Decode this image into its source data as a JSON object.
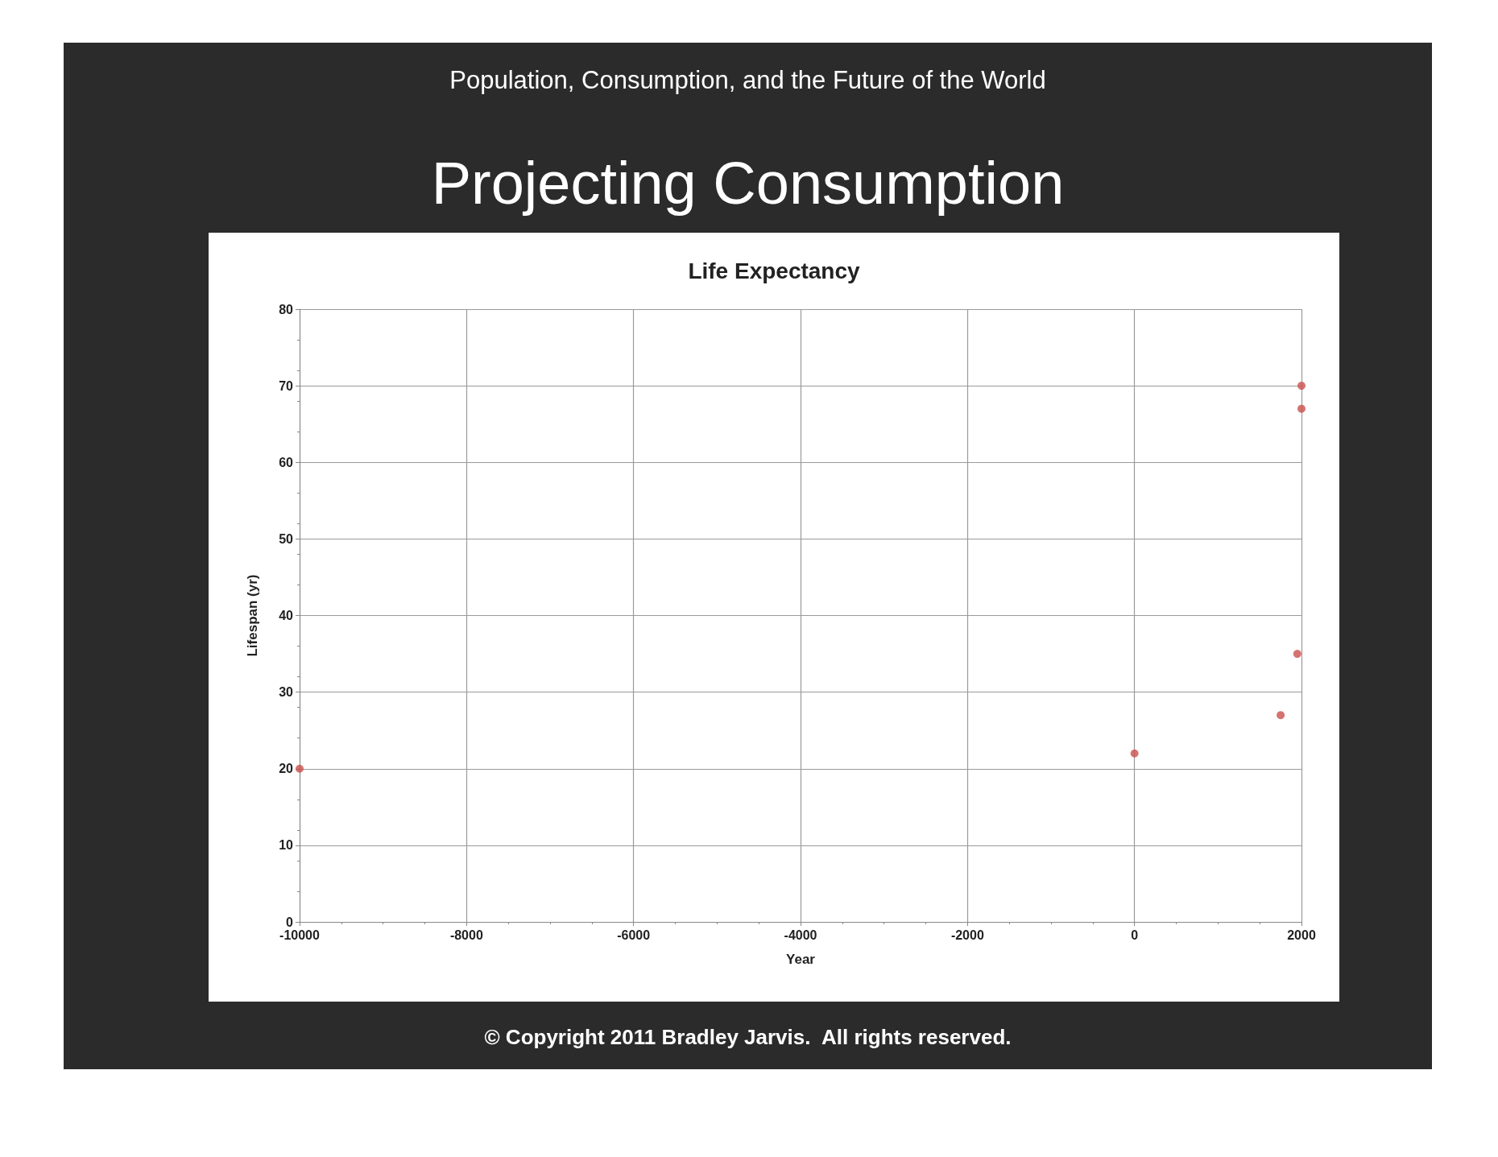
{
  "chart_data": {
    "type": "scatter",
    "title": "Projecting Consumption",
    "subtitle": "Population, Consumption, and the Future of the World",
    "annotations": [
      "Life Expectancy",
      "© Copyright 2011 Bradley Jarvis.  All rights reserved."
    ],
    "xlabel": "Year",
    "ylabel": "Lifespan (yr)",
    "x": [
      -10000,
      0,
      1750,
      1950,
      2000,
      2000
    ],
    "series": [
      {
        "color": "#c9504c",
        "values": [
          20,
          22,
          27,
          35,
          67,
          70
        ]
      }
    ],
    "xlim": [
      -10000,
      2000
    ],
    "xticks": [
      -10000,
      -8000,
      -6000,
      -4000,
      -2000,
      0,
      2000
    ],
    "ylim": [
      0,
      80
    ],
    "yticks": [
      0,
      10,
      20,
      30,
      40,
      50,
      60,
      70,
      80
    ],
    "grid": true,
    "marker": "circle"
  }
}
